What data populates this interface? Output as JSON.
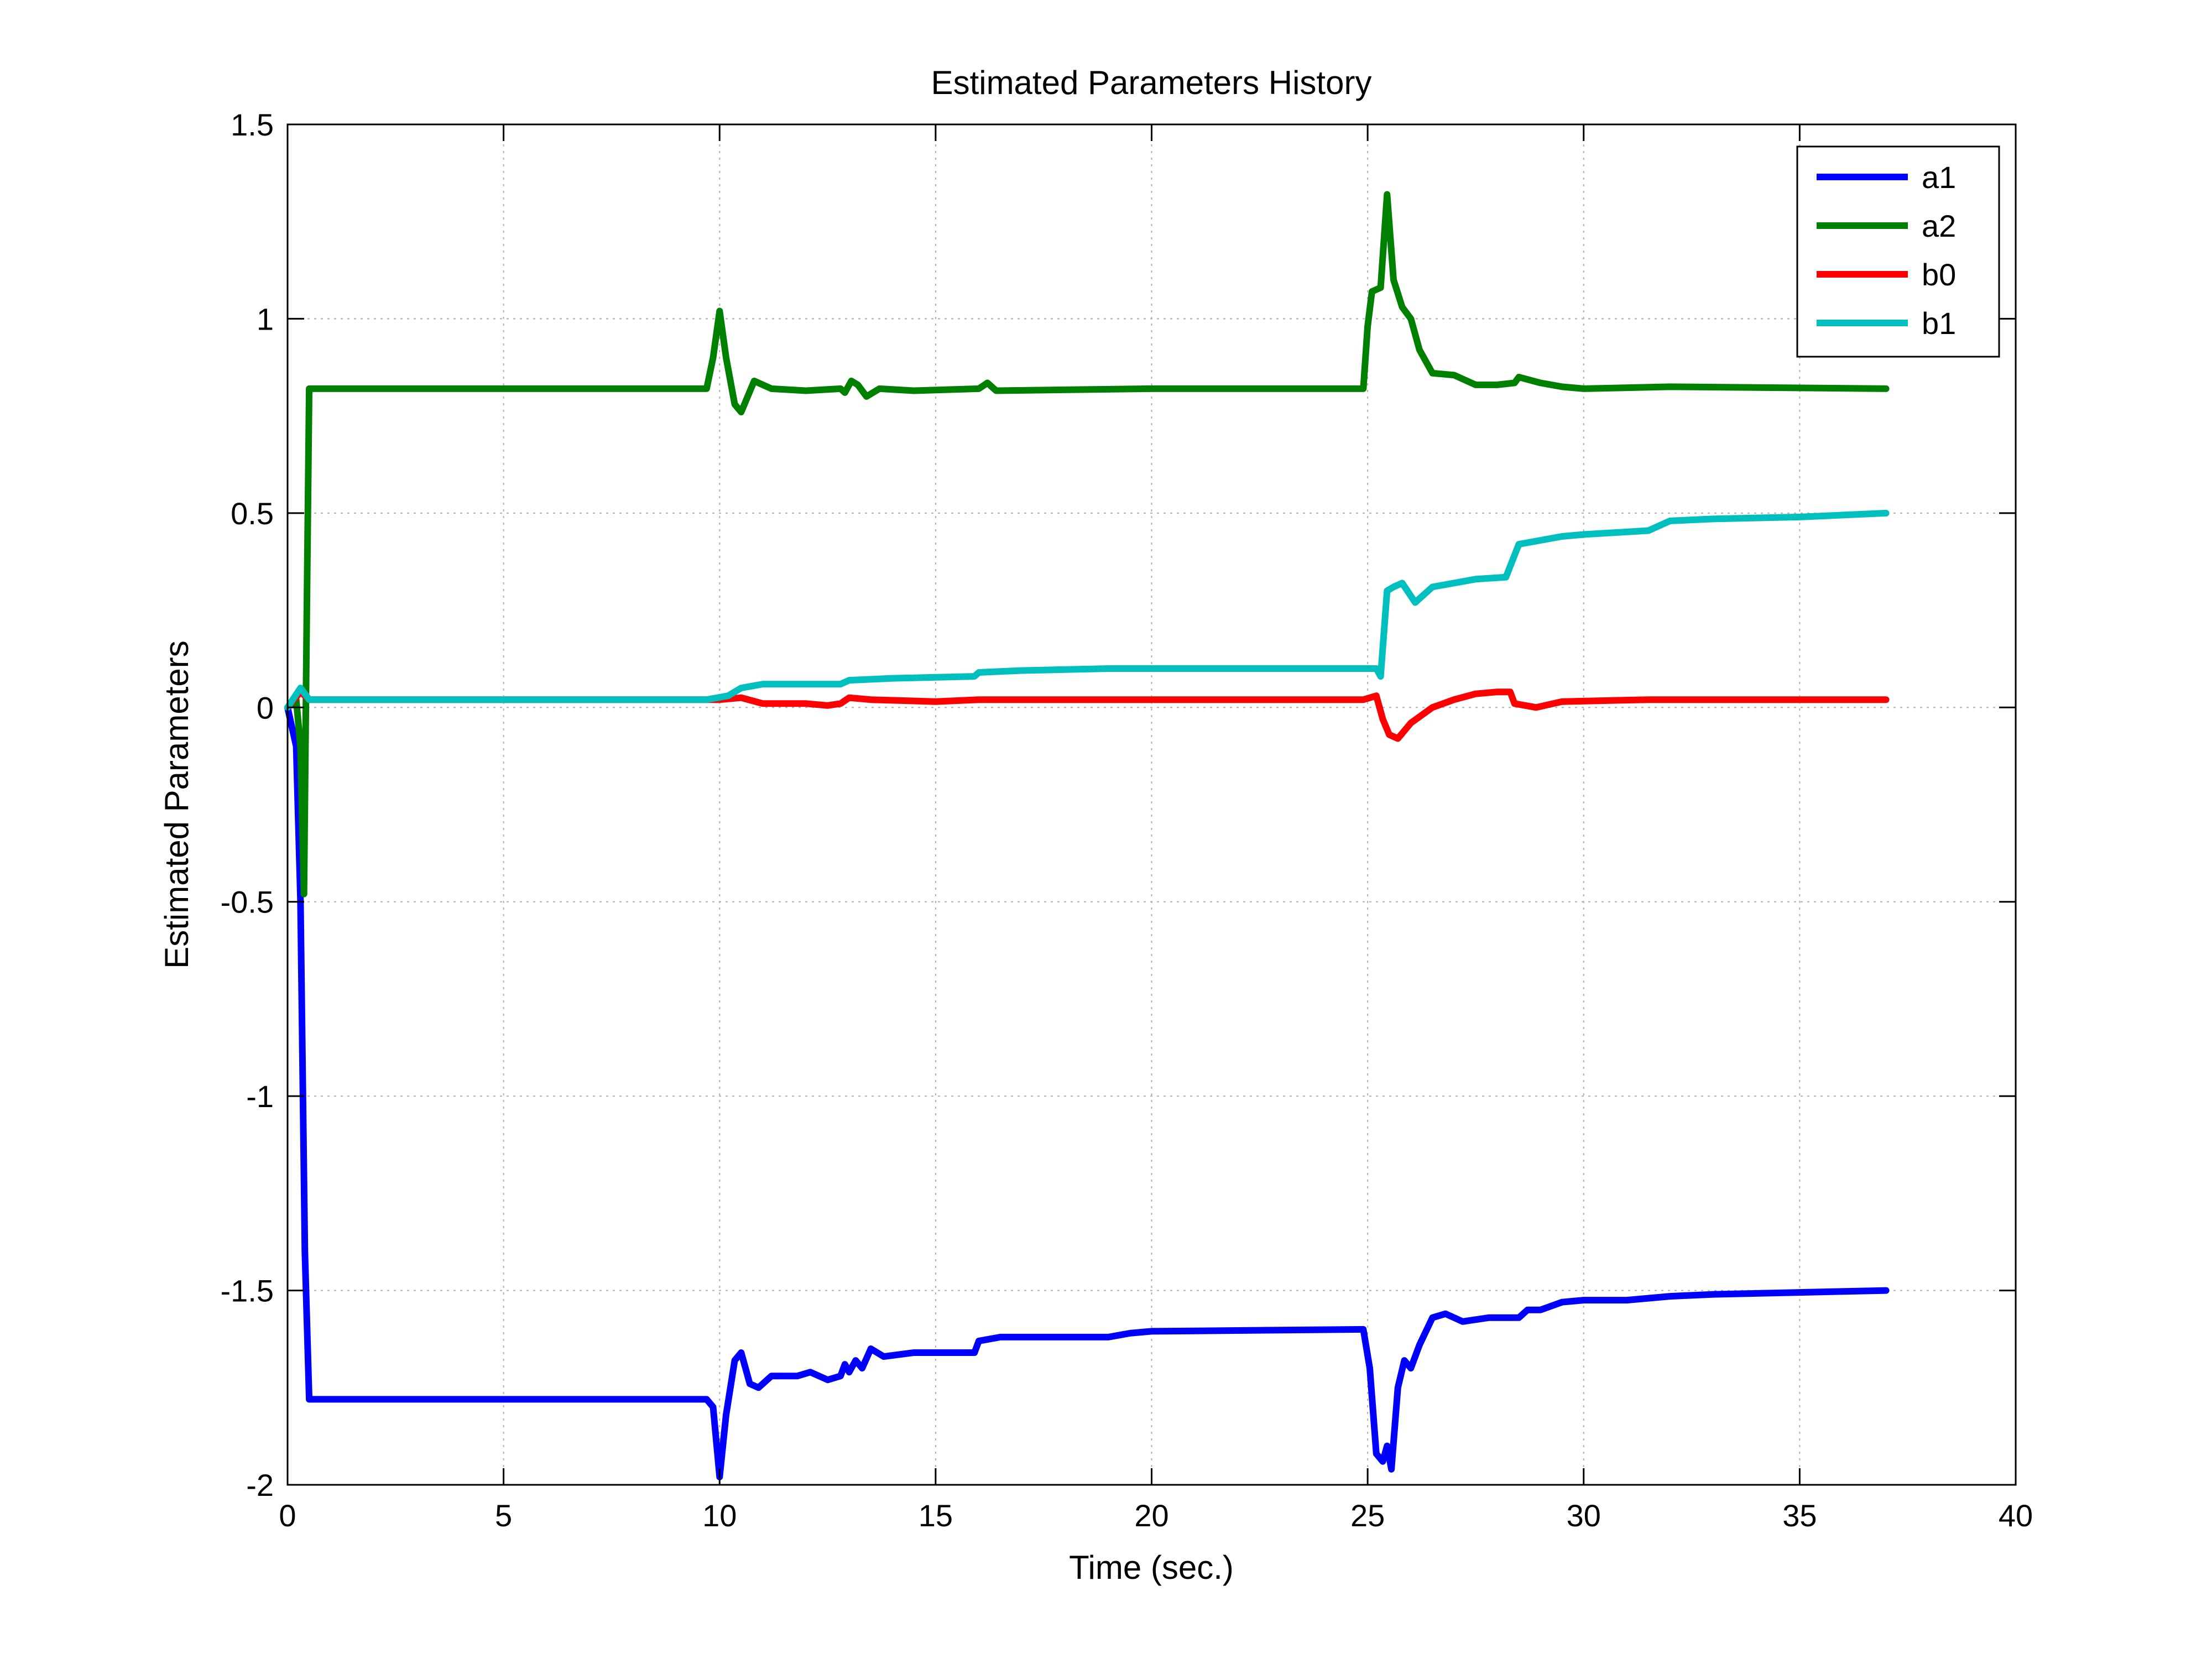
{
  "chart_data": {
    "type": "line",
    "title": "Estimated Parameters History",
    "xlabel": "Time (sec.)",
    "ylabel": "Estimated Parameters",
    "xlim": [
      0,
      40
    ],
    "ylim": [
      -2,
      1.5
    ],
    "xticks": [
      0,
      5,
      10,
      15,
      20,
      25,
      30,
      35,
      40
    ],
    "yticks": [
      -2,
      -1.5,
      -1,
      -0.5,
      0,
      0.5,
      1,
      1.5
    ],
    "xtick_labels": [
      "0",
      "5",
      "10",
      "15",
      "20",
      "25",
      "30",
      "35",
      "40"
    ],
    "ytick_labels": [
      "-2",
      "-1.5",
      "-1",
      "-0.5",
      "0",
      "0.5",
      "1",
      "1.5"
    ],
    "grid": true,
    "legend_position": "top-right",
    "series": [
      {
        "name": "a1",
        "color": "#0000ff",
        "points": [
          [
            0,
            0
          ],
          [
            0.2,
            -0.1
          ],
          [
            0.3,
            -0.5
          ],
          [
            0.4,
            -1.4
          ],
          [
            0.5,
            -1.78
          ],
          [
            9.7,
            -1.78
          ],
          [
            9.85,
            -1.8
          ],
          [
            10.0,
            -1.98
          ],
          [
            10.15,
            -1.82
          ],
          [
            10.35,
            -1.68
          ],
          [
            10.5,
            -1.66
          ],
          [
            10.7,
            -1.74
          ],
          [
            10.9,
            -1.75
          ],
          [
            11.2,
            -1.72
          ],
          [
            11.8,
            -1.72
          ],
          [
            12.1,
            -1.71
          ],
          [
            12.5,
            -1.73
          ],
          [
            12.8,
            -1.72
          ],
          [
            12.9,
            -1.69
          ],
          [
            13.0,
            -1.71
          ],
          [
            13.15,
            -1.68
          ],
          [
            13.3,
            -1.7
          ],
          [
            13.5,
            -1.65
          ],
          [
            13.8,
            -1.67
          ],
          [
            14.5,
            -1.66
          ],
          [
            15.9,
            -1.66
          ],
          [
            16.0,
            -1.63
          ],
          [
            16.5,
            -1.62
          ],
          [
            17.0,
            -1.62
          ],
          [
            19.0,
            -1.62
          ],
          [
            19.5,
            -1.61
          ],
          [
            20.0,
            -1.605
          ],
          [
            24.9,
            -1.6
          ],
          [
            25.05,
            -1.7
          ],
          [
            25.2,
            -1.92
          ],
          [
            25.35,
            -1.94
          ],
          [
            25.45,
            -1.9
          ],
          [
            25.55,
            -1.96
          ],
          [
            25.7,
            -1.75
          ],
          [
            25.85,
            -1.68
          ],
          [
            26.0,
            -1.7
          ],
          [
            26.2,
            -1.64
          ],
          [
            26.5,
            -1.57
          ],
          [
            26.8,
            -1.56
          ],
          [
            27.2,
            -1.58
          ],
          [
            27.8,
            -1.57
          ],
          [
            28.5,
            -1.57
          ],
          [
            28.7,
            -1.55
          ],
          [
            29.0,
            -1.55
          ],
          [
            29.5,
            -1.53
          ],
          [
            30.0,
            -1.525
          ],
          [
            31.0,
            -1.525
          ],
          [
            32.0,
            -1.515
          ],
          [
            33.0,
            -1.51
          ],
          [
            35.0,
            -1.505
          ],
          [
            37.0,
            -1.5
          ]
        ]
      },
      {
        "name": "a2",
        "color": "#008000",
        "points": [
          [
            0,
            0
          ],
          [
            0.2,
            0.02
          ],
          [
            0.3,
            -0.1
          ],
          [
            0.38,
            -0.48
          ],
          [
            0.45,
            0.3
          ],
          [
            0.5,
            0.82
          ],
          [
            9.7,
            0.82
          ],
          [
            9.85,
            0.9
          ],
          [
            10.0,
            1.02
          ],
          [
            10.15,
            0.9
          ],
          [
            10.35,
            0.78
          ],
          [
            10.5,
            0.76
          ],
          [
            10.8,
            0.84
          ],
          [
            11.2,
            0.82
          ],
          [
            12.0,
            0.815
          ],
          [
            12.8,
            0.82
          ],
          [
            12.9,
            0.81
          ],
          [
            13.05,
            0.84
          ],
          [
            13.2,
            0.83
          ],
          [
            13.4,
            0.8
          ],
          [
            13.7,
            0.82
          ],
          [
            14.5,
            0.815
          ],
          [
            16.0,
            0.82
          ],
          [
            16.2,
            0.835
          ],
          [
            16.4,
            0.815
          ],
          [
            20.0,
            0.82
          ],
          [
            24.9,
            0.82
          ],
          [
            25.0,
            0.98
          ],
          [
            25.1,
            1.07
          ],
          [
            25.3,
            1.08
          ],
          [
            25.45,
            1.32
          ],
          [
            25.6,
            1.1
          ],
          [
            25.8,
            1.03
          ],
          [
            26.0,
            1.0
          ],
          [
            26.2,
            0.92
          ],
          [
            26.5,
            0.86
          ],
          [
            27.0,
            0.855
          ],
          [
            27.5,
            0.83
          ],
          [
            28.0,
            0.83
          ],
          [
            28.4,
            0.835
          ],
          [
            28.5,
            0.85
          ],
          [
            29.0,
            0.835
          ],
          [
            29.5,
            0.825
          ],
          [
            30.0,
            0.82
          ],
          [
            32.0,
            0.825
          ],
          [
            37.0,
            0.82
          ]
        ]
      },
      {
        "name": "b0",
        "color": "#ff0000",
        "points": [
          [
            0,
            0
          ],
          [
            0.3,
            0.04
          ],
          [
            0.5,
            0.02
          ],
          [
            9.7,
            0.02
          ],
          [
            10.0,
            0.02
          ],
          [
            10.5,
            0.025
          ],
          [
            11.0,
            0.01
          ],
          [
            12.0,
            0.01
          ],
          [
            12.5,
            0.005
          ],
          [
            12.8,
            0.01
          ],
          [
            13.0,
            0.025
          ],
          [
            13.5,
            0.02
          ],
          [
            15.0,
            0.015
          ],
          [
            16.0,
            0.02
          ],
          [
            24.9,
            0.02
          ],
          [
            25.2,
            0.03
          ],
          [
            25.35,
            -0.03
          ],
          [
            25.5,
            -0.07
          ],
          [
            25.7,
            -0.08
          ],
          [
            26.0,
            -0.04
          ],
          [
            26.5,
            0.0
          ],
          [
            27.0,
            0.02
          ],
          [
            27.5,
            0.035
          ],
          [
            28.0,
            0.04
          ],
          [
            28.3,
            0.04
          ],
          [
            28.4,
            0.01
          ],
          [
            28.9,
            0.0
          ],
          [
            29.5,
            0.015
          ],
          [
            31.5,
            0.02
          ],
          [
            37.0,
            0.02
          ]
        ]
      },
      {
        "name": "b1",
        "color": "#00bfbf",
        "points": [
          [
            0,
            0
          ],
          [
            0.3,
            0.05
          ],
          [
            0.5,
            0.02
          ],
          [
            9.7,
            0.02
          ],
          [
            10.2,
            0.03
          ],
          [
            10.5,
            0.05
          ],
          [
            11.0,
            0.06
          ],
          [
            12.0,
            0.06
          ],
          [
            12.8,
            0.06
          ],
          [
            13.0,
            0.07
          ],
          [
            14.0,
            0.075
          ],
          [
            15.9,
            0.08
          ],
          [
            16.0,
            0.09
          ],
          [
            17.0,
            0.095
          ],
          [
            19.0,
            0.1
          ],
          [
            24.9,
            0.1
          ],
          [
            25.2,
            0.1
          ],
          [
            25.3,
            0.08
          ],
          [
            25.45,
            0.3
          ],
          [
            25.6,
            0.31
          ],
          [
            25.8,
            0.32
          ],
          [
            26.1,
            0.27
          ],
          [
            26.5,
            0.31
          ],
          [
            27.0,
            0.32
          ],
          [
            27.5,
            0.33
          ],
          [
            28.2,
            0.335
          ],
          [
            28.5,
            0.42
          ],
          [
            29.0,
            0.43
          ],
          [
            29.5,
            0.44
          ],
          [
            30.0,
            0.445
          ],
          [
            31.5,
            0.455
          ],
          [
            32.0,
            0.48
          ],
          [
            33.0,
            0.485
          ],
          [
            35.0,
            0.49
          ],
          [
            37.0,
            0.5
          ]
        ]
      }
    ]
  }
}
